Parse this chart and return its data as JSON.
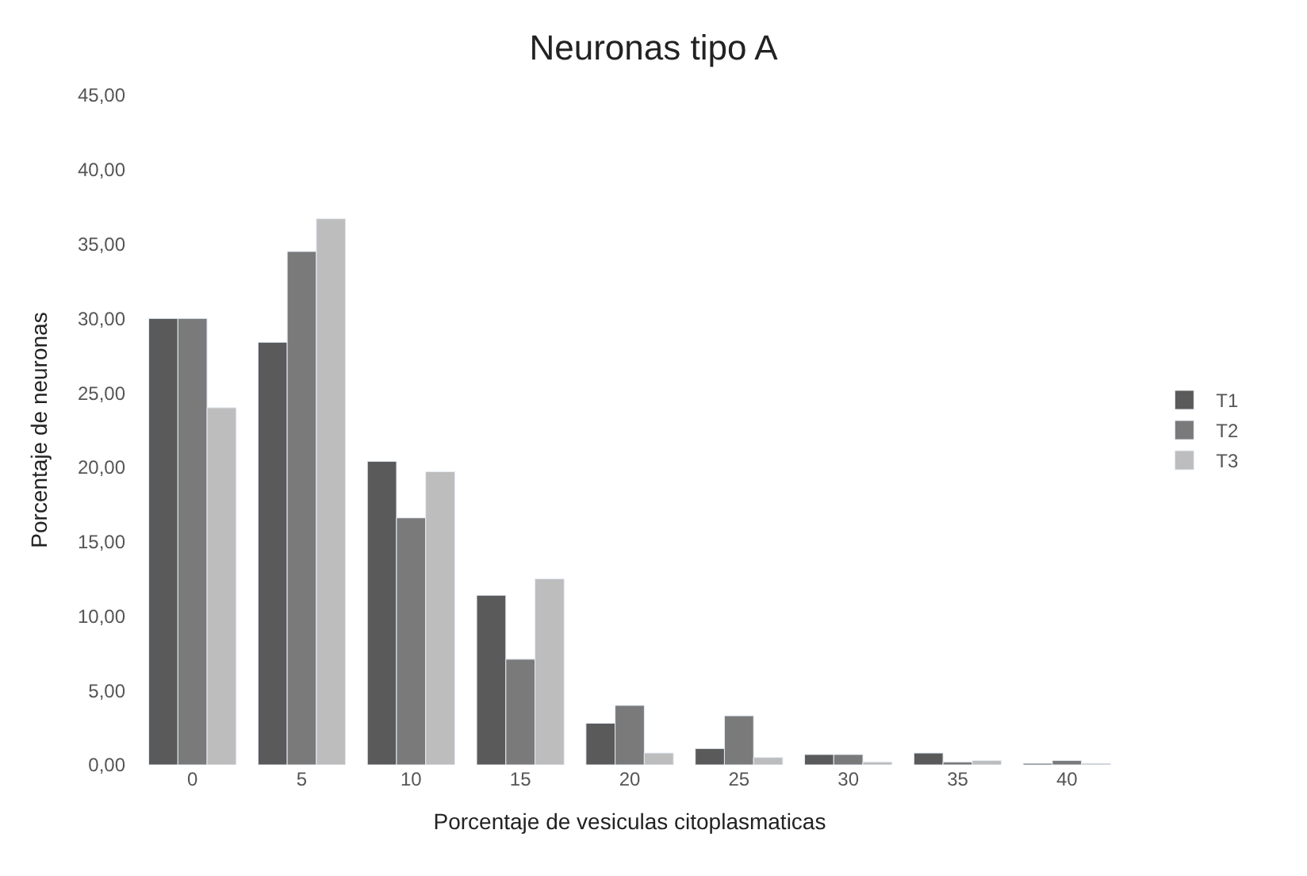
{
  "chart_data": {
    "type": "bar",
    "title": "Neuronas tipo A",
    "xlabel": "Porcentaje de vesiculas citoplasmaticas",
    "ylabel": "Porcentaje de neuronas",
    "categories": [
      "0",
      "5",
      "10",
      "15",
      "20",
      "25",
      "30",
      "35",
      "40"
    ],
    "series": [
      {
        "name": "T1",
        "color": "#5a5a5a",
        "values": [
          30.0,
          28.4,
          20.4,
          11.4,
          2.8,
          1.1,
          0.7,
          0.8,
          0.1
        ]
      },
      {
        "name": "T2",
        "color": "#7a7a7a",
        "values": [
          30.0,
          34.5,
          16.6,
          7.1,
          4.0,
          3.3,
          0.7,
          0.2,
          0.3
        ]
      },
      {
        "name": "T3",
        "color": "#bdbdbd",
        "values": [
          24.0,
          36.7,
          19.7,
          12.5,
          0.8,
          0.5,
          0.2,
          0.3,
          0.1
        ]
      }
    ],
    "ylim": [
      0,
      45
    ],
    "yticks": [
      {
        "value": 0,
        "label": "0,00"
      },
      {
        "value": 5,
        "label": "5,00"
      },
      {
        "value": 10,
        "label": "10,00"
      },
      {
        "value": 15,
        "label": "15,00"
      },
      {
        "value": 20,
        "label": "20,00"
      },
      {
        "value": 25,
        "label": "25,00"
      },
      {
        "value": 30,
        "label": "30,00"
      },
      {
        "value": 35,
        "label": "35,00"
      },
      {
        "value": 40,
        "label": "40,00"
      },
      {
        "value": 45,
        "label": "45,00"
      }
    ],
    "legend": "right"
  }
}
